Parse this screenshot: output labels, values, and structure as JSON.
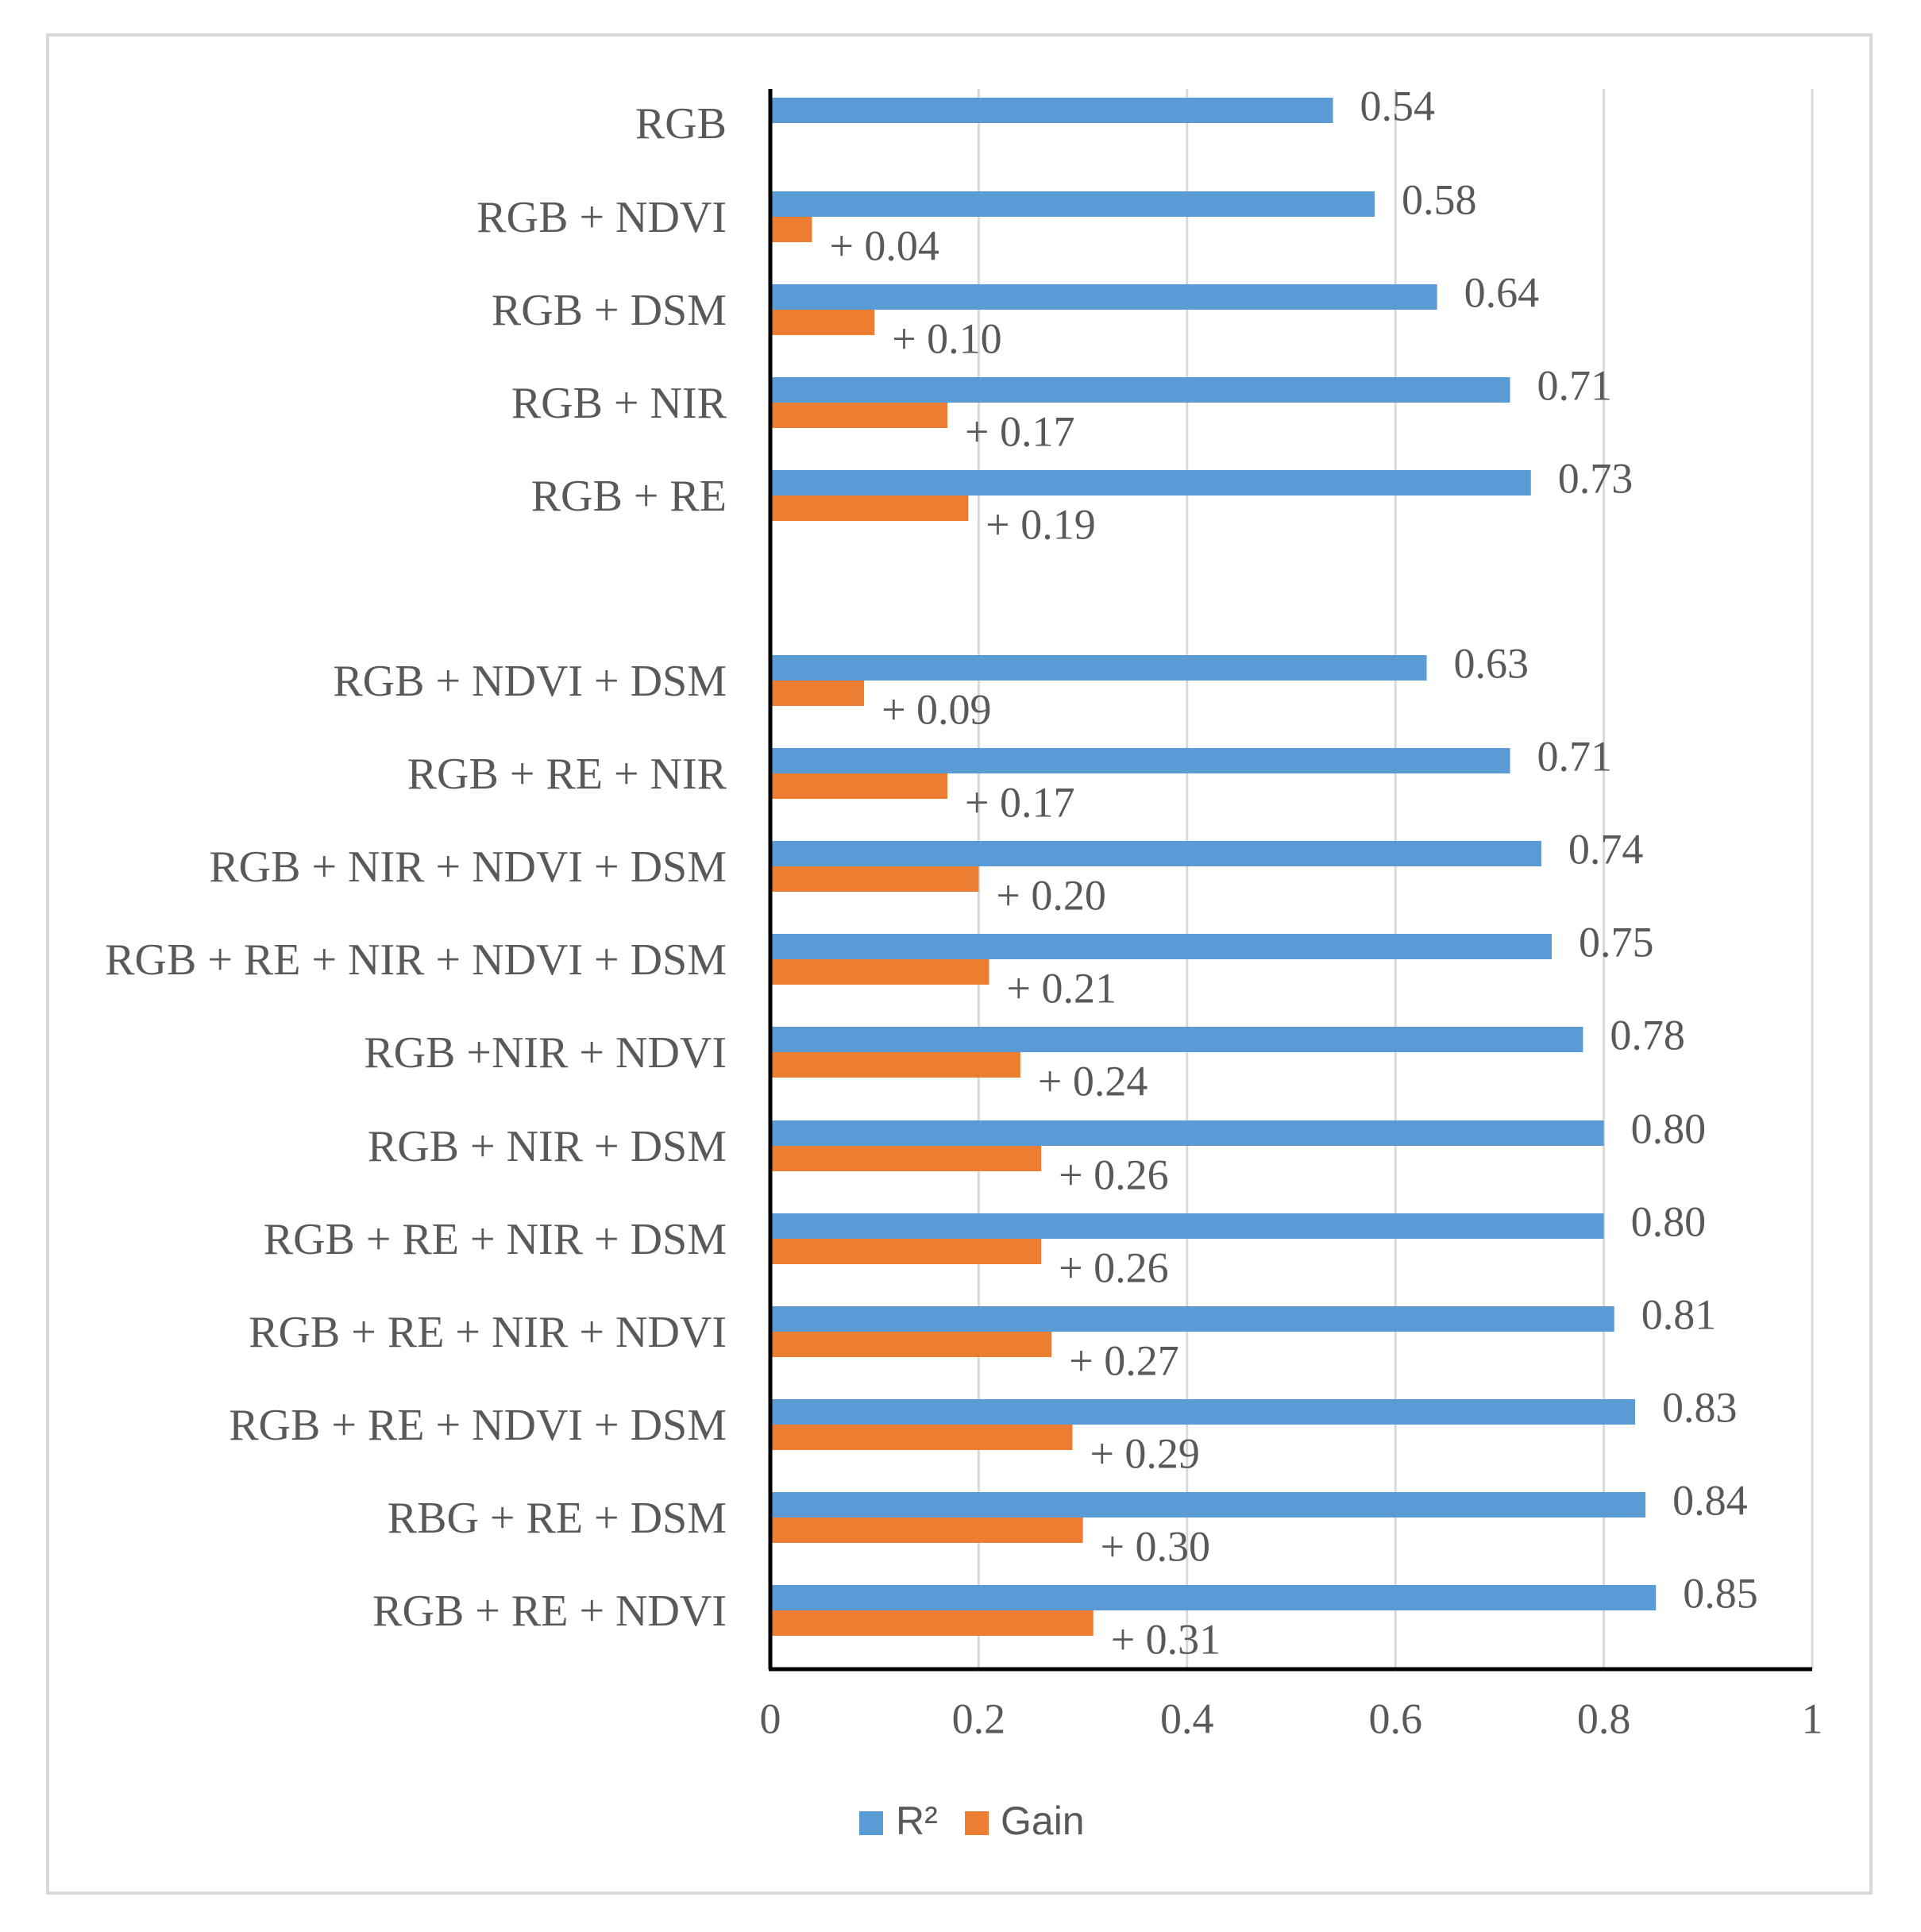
{
  "chart_data": {
    "type": "bar",
    "orientation": "horizontal",
    "categories": [
      "RGB",
      "RGB + NDVI",
      "RGB + DSM",
      "RGB + NIR",
      "RGB + RE",
      "RGB + NDVI + DSM",
      "RGB + RE + NIR",
      "RGB + NIR + NDVI + DSM",
      "RGB + RE + NIR + NDVI + DSM",
      "RGB +NIR + NDVI",
      "RGB + NIR + DSM",
      "RGB + RE + NIR + DSM",
      "RGB + RE + NIR + NDVI",
      "RGB + RE + NDVI + DSM",
      "RBG + RE + DSM",
      "RGB + RE +  NDVI"
    ],
    "series": [
      {
        "name": "R²",
        "color": "#5b9bd5",
        "values": [
          0.54,
          0.58,
          0.64,
          0.71,
          0.73,
          0.63,
          0.71,
          0.74,
          0.75,
          0.78,
          0.8,
          0.8,
          0.81,
          0.83,
          0.84,
          0.85
        ],
        "data_labels": [
          "0.54",
          "0.58",
          "0.64",
          "0.71",
          "0.73",
          "0.63",
          "0.71",
          "0.74",
          "0.75",
          "0.78",
          "0.80",
          "0.80",
          "0.81",
          "0.83",
          "0.84",
          "0.85"
        ]
      },
      {
        "name": "Gain",
        "color": "#ed7d31",
        "values": [
          null,
          0.04,
          0.1,
          0.17,
          0.19,
          0.09,
          0.17,
          0.2,
          0.21,
          0.24,
          0.26,
          0.26,
          0.27,
          0.29,
          0.3,
          0.31
        ],
        "data_labels": [
          "",
          "+ 0.04",
          "+ 0.10",
          "+ 0.17",
          "+ 0.19",
          "+ 0.09",
          "+ 0.17",
          "+ 0.20",
          "+ 0.21",
          "+ 0.24",
          "+ 0.26",
          "+ 0.26",
          "+ 0.27",
          "+ 0.29",
          "+ 0.30",
          "+ 0.31"
        ]
      }
    ],
    "xlim": [
      0,
      1
    ],
    "xticks": [
      0,
      0.2,
      0.4,
      0.6,
      0.8,
      1
    ],
    "xtick_labels": [
      "0",
      "0.2",
      "0.4",
      "0.6",
      "0.8",
      "1"
    ],
    "grid": "vertical",
    "legend_position": "bottom-center",
    "title": "",
    "xlabel": "",
    "ylabel": ""
  }
}
